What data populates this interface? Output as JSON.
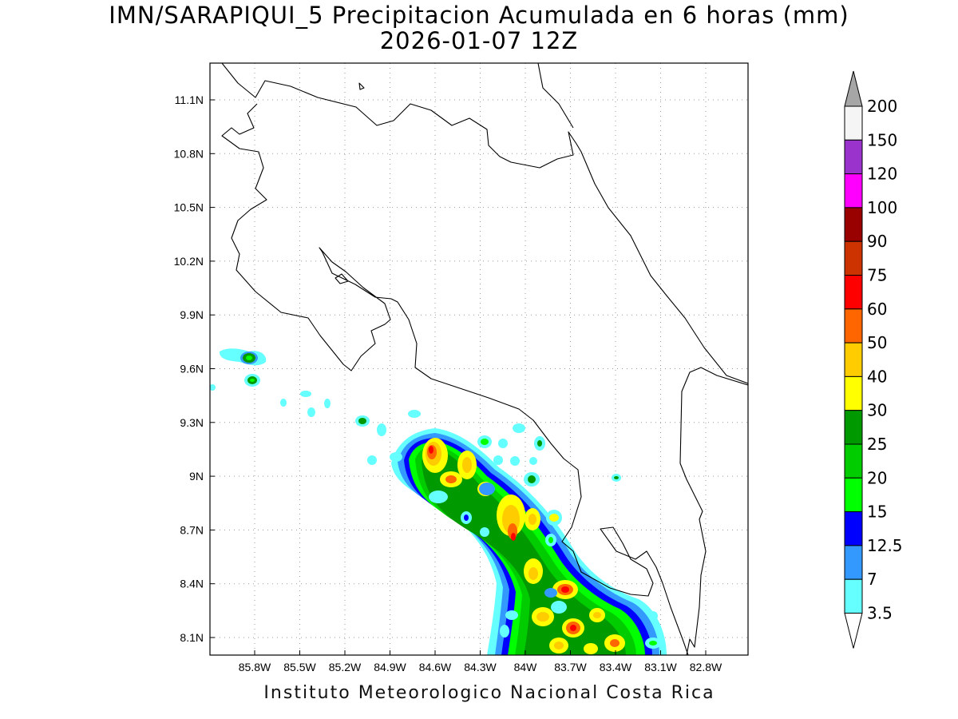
{
  "title": {
    "line1": "IMN/SARAPIQUI_5 Precipitacion Acumulada en 6 horas (mm)",
    "line2": "2026-01-07 12Z"
  },
  "footer": "Instituto Meteorologico Nacional Costa Rica",
  "map": {
    "lon_ticks": [
      "85.8W",
      "85.5W",
      "85.2W",
      "84.9W",
      "84.6W",
      "84.3W",
      "84W",
      "83.7W",
      "83.4W",
      "83.1W",
      "82.8W"
    ],
    "lat_ticks": [
      "11.1N",
      "10.8N",
      "10.5N",
      "10.2N",
      "9.9N",
      "9.6N",
      "9.3N",
      "9N",
      "8.7N",
      "8.4N",
      "8.1N"
    ],
    "grid": true
  },
  "colorbar": {
    "top_value": "200",
    "bins": [
      {
        "label": "150",
        "color": "#f5f5f5"
      },
      {
        "label": "120",
        "color": "#9933cc"
      },
      {
        "label": "100",
        "color": "#ff00ff"
      },
      {
        "label": "90",
        "color": "#990000"
      },
      {
        "label": "75",
        "color": "#cc3300"
      },
      {
        "label": "60",
        "color": "#ff0000"
      },
      {
        "label": "50",
        "color": "#ff6600"
      },
      {
        "label": "40",
        "color": "#ffcc00"
      },
      {
        "label": "30",
        "color": "#ffff00"
      },
      {
        "label": "25",
        "color": "#009900"
      },
      {
        "label": "20",
        "color": "#00cc00"
      },
      {
        "label": "15",
        "color": "#00ff00"
      },
      {
        "label": "12.5",
        "color": "#0000ff"
      },
      {
        "label": "7",
        "color": "#3399ff"
      },
      {
        "label": "3.5",
        "color": "#66ffff"
      }
    ],
    "over_color": "#a6a6a6",
    "under_color": "#ffffff"
  }
}
